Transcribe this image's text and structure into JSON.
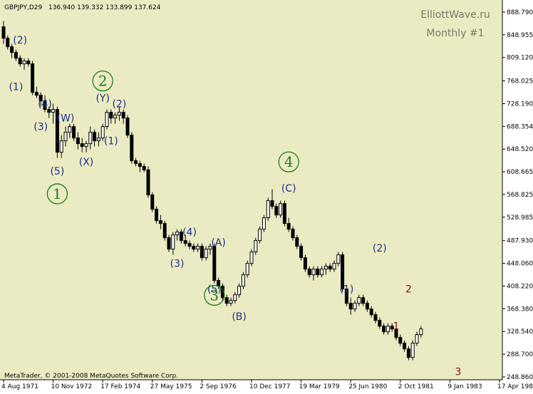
{
  "header": {
    "symbol_text": "GBPJPY,D29",
    "ohlc_text": "136.940 139.332 133.899 137.624"
  },
  "watermark": {
    "site": "ElliottWave.ru",
    "subtitle": "Monthly #1"
  },
  "copyright": "MetaTrader, © 2001-2008 MetaQuotes Software Corp.",
  "colors": {
    "background": "#ebebc3",
    "candle": "#000000",
    "wave_blue": "#1f2f88",
    "wave_green": "#1a7a1a",
    "wave_red": "#8a1010"
  },
  "chart_data": {
    "type": "candlestick",
    "ylim": [
      248.86,
      905.0
    ],
    "y_ticks": [
      "888.790",
      "848.955",
      "809.120",
      "768.025",
      "728.190",
      "688.354",
      "648.520",
      "608.665",
      "568.825",
      "528.985",
      "487.930",
      "448.060",
      "408.220",
      "368.380",
      "328.540",
      "288.700",
      "248.860"
    ],
    "x_tick_labels": [
      "4 Aug 1971",
      "10 Nov 1972",
      "17 Feb 1974",
      "27 May 1975",
      "2 Sep 1976",
      "10 Dec 1977",
      "19 Mar 1979",
      "25 Jun 1980",
      "2 Oct 1981",
      "9 Jan 1983",
      "17 Apr 1984"
    ],
    "x_tick_index": [
      0,
      12,
      24,
      36,
      48,
      60,
      72,
      84,
      96,
      108,
      120
    ],
    "candles": [
      [
        863,
        873,
        833,
        843
      ],
      [
        843,
        848,
        823,
        828
      ],
      [
        828,
        833,
        808,
        818
      ],
      [
        818,
        823,
        803,
        808
      ],
      [
        808,
        813,
        793,
        798
      ],
      [
        798,
        808,
        788,
        803
      ],
      [
        803,
        808,
        793,
        798
      ],
      [
        798,
        803,
        743,
        748
      ],
      [
        748,
        758,
        738,
        743
      ],
      [
        743,
        748,
        723,
        733
      ],
      [
        733,
        743,
        713,
        718
      ],
      [
        718,
        723,
        703,
        713
      ],
      [
        713,
        728,
        693,
        718
      ],
      [
        718,
        723,
        633,
        643
      ],
      [
        643,
        673,
        633,
        663
      ],
      [
        663,
        688,
        653,
        678
      ],
      [
        678,
        693,
        668,
        688
      ],
      [
        688,
        693,
        663,
        668
      ],
      [
        668,
        678,
        648,
        658
      ],
      [
        658,
        668,
        643,
        653
      ],
      [
        653,
        663,
        643,
        658
      ],
      [
        658,
        688,
        648,
        678
      ],
      [
        678,
        683,
        653,
        663
      ],
      [
        663,
        678,
        653,
        668
      ],
      [
        668,
        693,
        663,
        688
      ],
      [
        688,
        718,
        683,
        713
      ],
      [
        713,
        718,
        693,
        703
      ],
      [
        703,
        713,
        693,
        708
      ],
      [
        708,
        723,
        698,
        713
      ],
      [
        713,
        718,
        693,
        703
      ],
      [
        703,
        708,
        668,
        673
      ],
      [
        673,
        678,
        623,
        628
      ],
      [
        628,
        633,
        618,
        623
      ],
      [
        623,
        628,
        608,
        618
      ],
      [
        618,
        623,
        608,
        612
      ],
      [
        612,
        618,
        563,
        568
      ],
      [
        568,
        573,
        538,
        543
      ],
      [
        543,
        548,
        518,
        523
      ],
      [
        523,
        533,
        508,
        518
      ],
      [
        518,
        523,
        488,
        493
      ],
      [
        493,
        498,
        468,
        473
      ],
      [
        473,
        503,
        463,
        498
      ],
      [
        498,
        508,
        488,
        503
      ],
      [
        503,
        508,
        483,
        488
      ],
      [
        488,
        498,
        478,
        483
      ],
      [
        483,
        488,
        473,
        478
      ],
      [
        478,
        483,
        468,
        473
      ],
      [
        473,
        483,
        468,
        478
      ],
      [
        478,
        483,
        453,
        458
      ],
      [
        458,
        478,
        453,
        473
      ],
      [
        473,
        483,
        463,
        478
      ],
      [
        478,
        483,
        413,
        418
      ],
      [
        418,
        423,
        403,
        408
      ],
      [
        408,
        413,
        383,
        388
      ],
      [
        388,
        393,
        373,
        378
      ],
      [
        378,
        388,
        373,
        383
      ],
      [
        383,
        398,
        378,
        393
      ],
      [
        393,
        413,
        388,
        408
      ],
      [
        408,
        433,
        403,
        428
      ],
      [
        428,
        453,
        423,
        448
      ],
      [
        448,
        473,
        443,
        468
      ],
      [
        468,
        493,
        463,
        488
      ],
      [
        488,
        513,
        483,
        508
      ],
      [
        508,
        533,
        503,
        528
      ],
      [
        528,
        563,
        523,
        558
      ],
      [
        558,
        578,
        543,
        548
      ],
      [
        548,
        553,
        528,
        533
      ],
      [
        533,
        558,
        528,
        553
      ],
      [
        553,
        558,
        513,
        518
      ],
      [
        518,
        528,
        503,
        508
      ],
      [
        508,
        513,
        488,
        493
      ],
      [
        493,
        498,
        473,
        478
      ],
      [
        478,
        483,
        453,
        458
      ],
      [
        458,
        463,
        433,
        438
      ],
      [
        438,
        443,
        423,
        428
      ],
      [
        428,
        443,
        418,
        438
      ],
      [
        438,
        443,
        423,
        428
      ],
      [
        428,
        443,
        423,
        438
      ],
      [
        438,
        448,
        428,
        443
      ],
      [
        443,
        448,
        433,
        438
      ],
      [
        438,
        453,
        433,
        448
      ],
      [
        448,
        468,
        443,
        463
      ],
      [
        463,
        468,
        398,
        403
      ],
      [
        403,
        408,
        373,
        378
      ],
      [
        378,
        388,
        358,
        368
      ],
      [
        368,
        383,
        363,
        378
      ],
      [
        378,
        393,
        373,
        388
      ],
      [
        388,
        393,
        373,
        378
      ],
      [
        378,
        383,
        363,
        368
      ],
      [
        368,
        373,
        353,
        358
      ],
      [
        358,
        363,
        343,
        348
      ],
      [
        348,
        353,
        333,
        338
      ],
      [
        338,
        343,
        323,
        328
      ],
      [
        328,
        343,
        323,
        338
      ],
      [
        338,
        343,
        328,
        333
      ],
      [
        333,
        338,
        313,
        318
      ],
      [
        318,
        323,
        303,
        308
      ],
      [
        308,
        313,
        293,
        298
      ],
      [
        298,
        303,
        278,
        283
      ],
      [
        283,
        313,
        278,
        308
      ],
      [
        308,
        328,
        303,
        323
      ],
      [
        323,
        338,
        318,
        333
      ]
    ]
  },
  "wave_labels": [
    {
      "text": "(2)",
      "i": 4,
      "v": 840,
      "c": "wave_blue"
    },
    {
      "text": "(1)",
      "i": 3,
      "v": 758,
      "c": "wave_blue"
    },
    {
      "text": "(4)",
      "i": 10,
      "v": 728,
      "c": "wave_blue"
    },
    {
      "text": "(3)",
      "i": 9,
      "v": 688,
      "c": "wave_blue"
    },
    {
      "text": "(W)",
      "i": 15,
      "v": 703,
      "c": "wave_blue"
    },
    {
      "text": "(5)",
      "i": 13,
      "v": 610,
      "c": "wave_blue"
    },
    {
      "text": "(X)",
      "i": 20,
      "v": 626,
      "c": "wave_blue"
    },
    {
      "text": "(Y)",
      "i": 24,
      "v": 738,
      "c": "wave_blue"
    },
    {
      "text": "(2)",
      "i": 28,
      "v": 728,
      "c": "wave_blue"
    },
    {
      "text": "(1)",
      "i": 26,
      "v": 663,
      "c": "wave_blue"
    },
    {
      "text": "(4)",
      "i": 45,
      "v": 503,
      "c": "wave_blue"
    },
    {
      "text": "(3)",
      "i": 42,
      "v": 448,
      "c": "wave_blue"
    },
    {
      "text": "(A)",
      "i": 52,
      "v": 485,
      "c": "wave_blue"
    },
    {
      "text": "(5)",
      "i": 51,
      "v": 403,
      "c": "wave_blue"
    },
    {
      "text": "(B)",
      "i": 57,
      "v": 355,
      "c": "wave_blue"
    },
    {
      "text": "(C)",
      "i": 69,
      "v": 580,
      "c": "wave_blue"
    },
    {
      "text": "(1)",
      "i": 83,
      "v": 403,
      "c": "wave_blue"
    },
    {
      "text": "(2)",
      "i": 91,
      "v": 475,
      "c": "wave_blue"
    },
    {
      "text": "1",
      "i": 95,
      "v": 338,
      "c": "wave_red"
    },
    {
      "text": "2",
      "i": 98,
      "v": 403,
      "c": "wave_red"
    },
    {
      "text": "3",
      "i": 110,
      "v": 258,
      "c": "wave_red"
    }
  ],
  "circle_labels": [
    {
      "text": "1",
      "i": 13,
      "v": 570,
      "c": "wave_green"
    },
    {
      "text": "2",
      "i": 24,
      "v": 768,
      "c": "wave_green"
    },
    {
      "text": "3",
      "i": 51,
      "v": 392,
      "c": "wave_green"
    },
    {
      "text": "4",
      "i": 69,
      "v": 626,
      "c": "wave_green"
    }
  ]
}
